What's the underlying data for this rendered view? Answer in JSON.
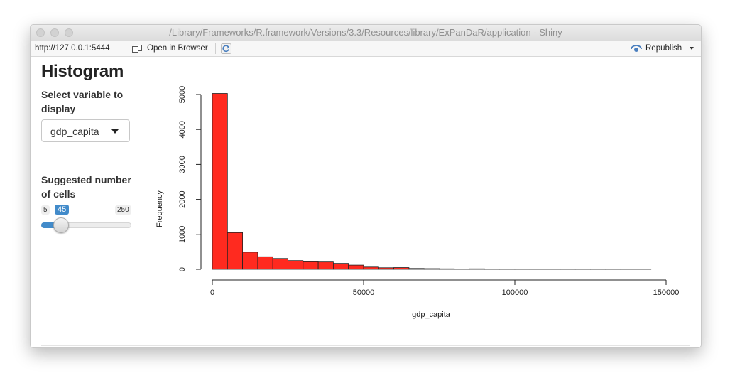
{
  "window": {
    "title": "/Library/Frameworks/R.framework/Versions/3.3/Resources/library/ExPanDaR/application - Shiny"
  },
  "toolbar": {
    "url": "http://127.0.0.1:5444",
    "open_browser_label": "Open in Browser",
    "republish_label": "Republish"
  },
  "sidebar": {
    "title": "Histogram",
    "variable_label": "Select variable to display",
    "selected_variable": "gdp_capita",
    "cells_label": "Suggested number of cells",
    "slider": {
      "min": "5",
      "max": "250",
      "value": "45",
      "accent": "#428bca"
    }
  },
  "chart_data": {
    "type": "bar",
    "title": "",
    "xlabel": "gdp_capita",
    "ylabel": "Frequency",
    "bin_width": 5000,
    "bin_starts": [
      0,
      5000,
      10000,
      15000,
      20000,
      25000,
      30000,
      35000,
      40000,
      45000,
      50000,
      55000,
      60000,
      65000,
      70000,
      75000,
      80000,
      85000,
      90000,
      95000,
      100000,
      105000,
      110000,
      115000,
      120000,
      125000,
      130000,
      135000,
      140000
    ],
    "values": [
      5030,
      1050,
      490,
      360,
      310,
      250,
      215,
      210,
      170,
      120,
      65,
      45,
      50,
      25,
      20,
      15,
      10,
      15,
      8,
      6,
      5,
      4,
      3,
      3,
      2,
      2,
      2,
      2,
      2
    ],
    "xlim": [
      0,
      150000
    ],
    "ylim": [
      0,
      5000
    ],
    "x_ticks": [
      "0",
      "50000",
      "100000",
      "150000"
    ],
    "y_ticks": [
      "0",
      "1000",
      "2000",
      "3000",
      "4000",
      "5000"
    ],
    "bar_color": "#ff2a1f",
    "grid": false,
    "legend": "none"
  }
}
